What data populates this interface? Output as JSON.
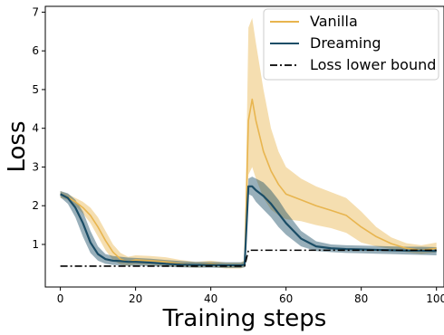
{
  "chart_data": {
    "type": "line",
    "title": "",
    "xlabel": "Training steps",
    "ylabel": "Loss",
    "xlim": [
      -4,
      102
    ],
    "ylim": [
      -0.1,
      7.15
    ],
    "xticks": [
      0,
      20,
      40,
      60,
      80,
      100
    ],
    "yticks": [
      1,
      2,
      3,
      4,
      5,
      6,
      7
    ],
    "grid": false,
    "legend_position": "top-right",
    "colors": {
      "Vanilla": "#e8b54f",
      "Dreaming": "#1b4d66",
      "Loss lower bound": "#000000"
    },
    "series": [
      {
        "name": "Vanilla",
        "style": "solid-with-band",
        "x": [
          0,
          2,
          4,
          6,
          8,
          10,
          12,
          14,
          16,
          18,
          20,
          24,
          28,
          32,
          36,
          40,
          44,
          48,
          49,
          50,
          51,
          52,
          54,
          56,
          58,
          60,
          64,
          68,
          72,
          76,
          80,
          84,
          88,
          92,
          96,
          100
        ],
        "y": [
          2.3,
          2.22,
          2.1,
          1.95,
          1.75,
          1.45,
          1.1,
          0.8,
          0.62,
          0.55,
          0.6,
          0.58,
          0.55,
          0.5,
          0.47,
          0.5,
          0.45,
          0.45,
          0.5,
          4.2,
          4.75,
          4.2,
          3.4,
          2.9,
          2.55,
          2.3,
          2.15,
          2.0,
          1.88,
          1.75,
          1.45,
          1.2,
          1.02,
          0.9,
          0.85,
          0.9
        ],
        "lower": [
          2.2,
          2.15,
          2.0,
          1.8,
          1.55,
          1.2,
          0.85,
          0.6,
          0.48,
          0.45,
          0.48,
          0.47,
          0.45,
          0.42,
          0.4,
          0.42,
          0.38,
          0.38,
          0.42,
          2.8,
          3.0,
          2.7,
          2.2,
          1.9,
          1.75,
          1.65,
          1.6,
          1.5,
          1.42,
          1.3,
          1.05,
          0.95,
          0.88,
          0.8,
          0.75,
          0.8
        ],
        "upper": [
          2.38,
          2.3,
          2.2,
          2.1,
          1.95,
          1.7,
          1.35,
          1.0,
          0.78,
          0.68,
          0.72,
          0.7,
          0.67,
          0.6,
          0.55,
          0.58,
          0.53,
          0.53,
          0.6,
          6.6,
          6.85,
          6.2,
          5.0,
          4.0,
          3.4,
          3.0,
          2.7,
          2.5,
          2.35,
          2.2,
          1.85,
          1.45,
          1.18,
          1.03,
          0.98,
          1.05
        ]
      },
      {
        "name": "Dreaming",
        "style": "solid-with-band",
        "x": [
          0,
          2,
          4,
          6,
          8,
          10,
          12,
          14,
          16,
          18,
          20,
          24,
          28,
          32,
          36,
          40,
          44,
          48,
          49,
          50,
          51,
          52,
          54,
          56,
          58,
          60,
          64,
          68,
          72,
          76,
          80,
          84,
          88,
          92,
          96,
          100
        ],
        "y": [
          2.3,
          2.2,
          1.95,
          1.55,
          1.05,
          0.75,
          0.62,
          0.58,
          0.57,
          0.55,
          0.55,
          0.53,
          0.5,
          0.48,
          0.47,
          0.47,
          0.46,
          0.46,
          0.48,
          2.5,
          2.5,
          2.4,
          2.25,
          2.05,
          1.8,
          1.55,
          1.15,
          0.95,
          0.9,
          0.88,
          0.87,
          0.86,
          0.85,
          0.84,
          0.84,
          0.83
        ],
        "lower": [
          2.22,
          2.05,
          1.7,
          1.2,
          0.78,
          0.58,
          0.5,
          0.47,
          0.46,
          0.45,
          0.45,
          0.44,
          0.42,
          0.41,
          0.4,
          0.4,
          0.39,
          0.39,
          0.41,
          2.3,
          2.25,
          2.1,
          1.9,
          1.7,
          1.45,
          1.25,
          0.95,
          0.83,
          0.8,
          0.78,
          0.77,
          0.76,
          0.75,
          0.74,
          0.73,
          0.72
        ],
        "upper": [
          2.38,
          2.32,
          2.15,
          1.85,
          1.35,
          0.95,
          0.75,
          0.7,
          0.68,
          0.66,
          0.65,
          0.63,
          0.6,
          0.57,
          0.55,
          0.55,
          0.54,
          0.54,
          0.56,
          2.7,
          2.75,
          2.7,
          2.6,
          2.4,
          2.15,
          1.85,
          1.35,
          1.08,
          1.0,
          0.98,
          0.97,
          0.96,
          0.95,
          0.94,
          0.94,
          0.93
        ]
      },
      {
        "name": "Loss lower bound",
        "style": "dashdot",
        "x": [
          0,
          49,
          50,
          100
        ],
        "y": [
          0.44,
          0.44,
          0.85,
          0.85
        ]
      }
    ]
  }
}
